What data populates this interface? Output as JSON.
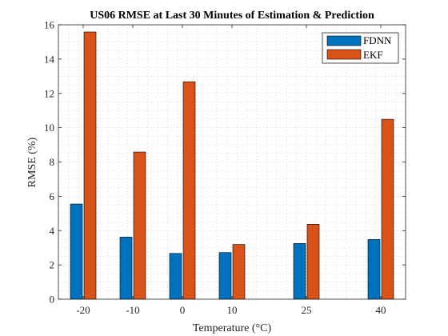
{
  "colors": {
    "fdnn": "#0072BD",
    "ekf": "#D95319",
    "axis": "#262626",
    "grid": "#b8b8b8"
  },
  "chart_data": {
    "type": "bar",
    "title": "US06 RMSE at Last 30 Minutes of Estimation & Prediction",
    "xlabel": "Temperature (°C)",
    "ylabel": "RMSE (%)",
    "x": [
      -20,
      -10,
      0,
      10,
      25,
      40
    ],
    "categories": [
      "-20",
      "-10",
      "0",
      "10",
      "25",
      "40"
    ],
    "xlim": [
      -25,
      45
    ],
    "ylim": [
      0,
      16
    ],
    "yticks": [
      0,
      2,
      4,
      6,
      8,
      10,
      12,
      14,
      16
    ],
    "grid": true,
    "legend_position": "top-right",
    "series": [
      {
        "name": "FDNN",
        "values": [
          5.55,
          3.62,
          2.67,
          2.72,
          3.25,
          3.48
        ]
      },
      {
        "name": "EKF",
        "values": [
          15.58,
          8.58,
          12.68,
          3.19,
          4.37,
          10.49
        ]
      }
    ]
  }
}
